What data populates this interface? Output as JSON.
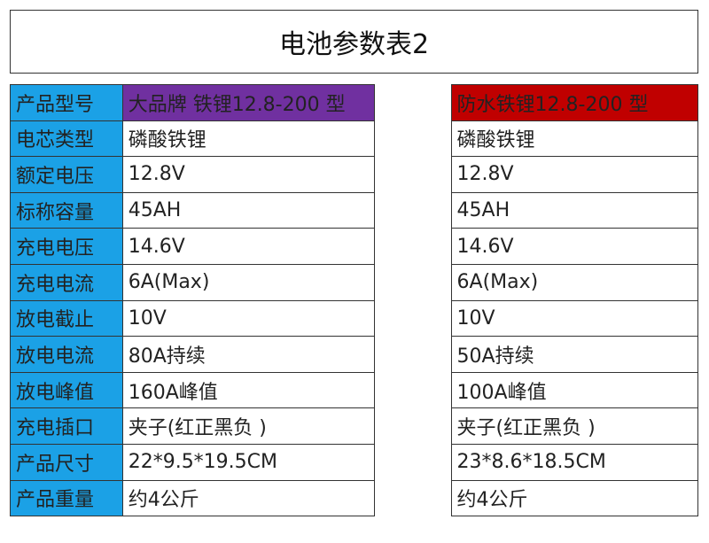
{
  "title": "电池参数表2",
  "header": {
    "label": "产品型号",
    "product_a": "大品牌 铁锂12.8-200  型",
    "product_b": "防水铁锂12.8-200  型",
    "colors": {
      "label": "#1ba1e6",
      "product_a": "#7030a0",
      "product_b": "#c00000"
    }
  },
  "rows": [
    {
      "label": "电芯类型",
      "a": "磷酸铁锂",
      "b": "磷酸铁锂"
    },
    {
      "label": "额定电压",
      "a": "12.8V",
      "b": "12.8V"
    },
    {
      "label": "标称容量",
      "a": "45AH",
      "b": "45AH"
    },
    {
      "label": "充电电压",
      "a": "14.6V",
      "b": "14.6V"
    },
    {
      "label": "充电电流",
      "a": "6A(Max)",
      "b": "6A(Max)"
    },
    {
      "label": "放电截止",
      "a": "10V",
      "b": "10V"
    },
    {
      "label": "放电电流",
      "a": "80A持续",
      "b": "50A持续"
    },
    {
      "label": "放电峰值",
      "a": "160A峰值",
      "b": "100A峰值"
    },
    {
      "label": "充电插口",
      "a": "夹子(红正黑负 )",
      "b": "夹子(红正黑负 )"
    },
    {
      "label": "产品尺寸",
      "a": "22*9.5*19.5CM",
      "b": "23*8.6*18.5CM"
    },
    {
      "label": "产品重量",
      "a": "约4公斤",
      "b": "约4公斤"
    }
  ]
}
